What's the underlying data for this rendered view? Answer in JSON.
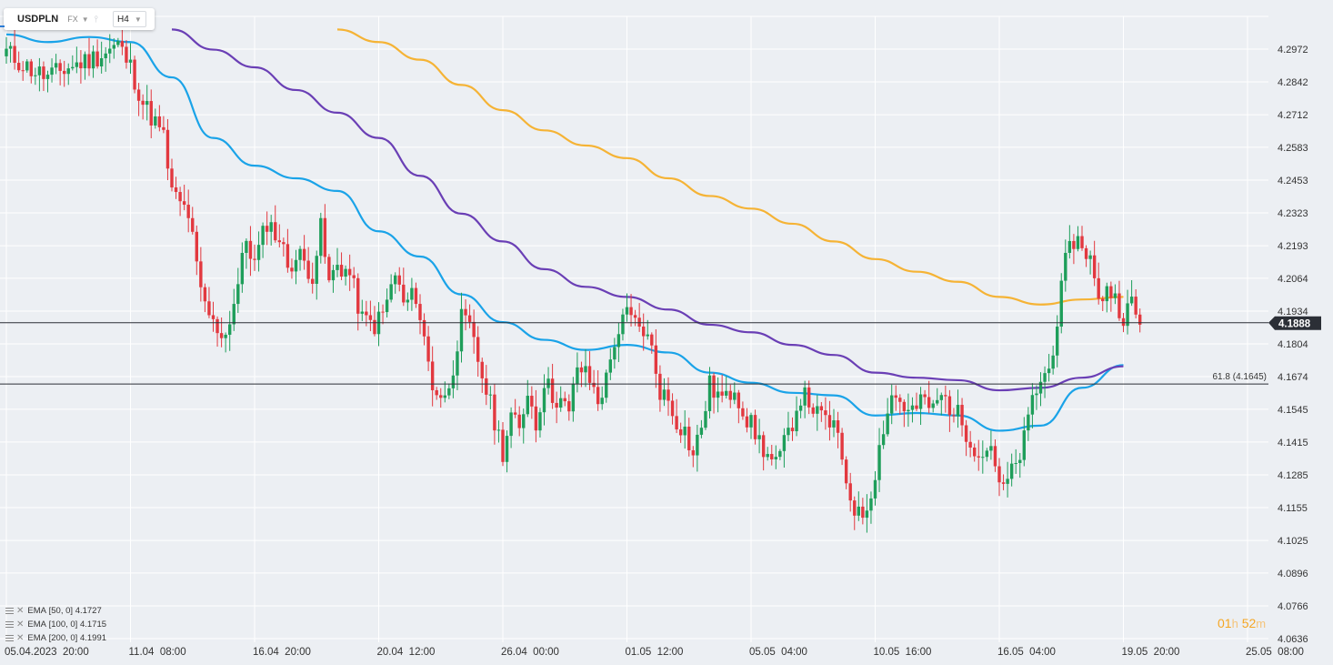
{
  "toolbar": {
    "symbol": "USDPLN",
    "market": "FX",
    "timeframe": "H4"
  },
  "chart_data": {
    "type": "candlestick",
    "symbol": "USDPLN",
    "timeframe": "H4",
    "ylim": [
      4.0636,
      4.3045
    ],
    "y_ticks": [
      "4.2972",
      "4.2842",
      "4.2712",
      "4.2583",
      "4.2453",
      "4.2323",
      "4.2193",
      "4.2064",
      "4.1934",
      "4.1804",
      "4.1674",
      "4.1545",
      "4.1415",
      "4.1285",
      "4.1155",
      "4.1025",
      "4.0896",
      "4.0766",
      "4.0636"
    ],
    "x_ticks": [
      {
        "label": "05.04.2023  20:00",
        "bar": 0
      },
      {
        "label": "11.04  08:00",
        "bar": 30
      },
      {
        "label": "16.04  20:00",
        "bar": 60
      },
      {
        "label": "20.04  12:00",
        "bar": 90
      },
      {
        "label": "26.04  00:00",
        "bar": 120
      },
      {
        "label": "01.05  12:00",
        "bar": 150
      },
      {
        "label": "05.05  04:00",
        "bar": 180
      },
      {
        "label": "10.05  16:00",
        "bar": 210
      },
      {
        "label": "16.05  04:00",
        "bar": 240
      },
      {
        "label": "19.05  20:00",
        "bar": 270
      },
      {
        "label": "25.05  08:00",
        "bar": 300
      }
    ],
    "last_price": "4.1888",
    "horizontal_lines": [
      {
        "value": 4.1888,
        "label": "",
        "color": "#2b2f36"
      },
      {
        "value": 4.1645,
        "label": "61.8 (4.1645)",
        "color": "#2b2f36"
      }
    ],
    "colors": {
      "up": "#1e9e5a",
      "down": "#e2383f",
      "ema50": "#1aa3e8",
      "ema100": "#6a3fb5",
      "ema200": "#f5b335",
      "grid": "#ffffff",
      "plot_bg": "#eceff3"
    },
    "indicators": [
      {
        "name": "EMA",
        "params": "[50,  0]",
        "value": "4.1727",
        "color": "#1aa3e8"
      },
      {
        "name": "EMA",
        "params": "[100,  0]",
        "value": "4.1715",
        "color": "#6a3fb5"
      },
      {
        "name": "EMA",
        "params": "[200,  0]",
        "value": "4.1991",
        "color": "#f5b335"
      }
    ],
    "ema_series": [
      {
        "key": "ema50",
        "points": [
          [
            0,
            4.303
          ],
          [
            10,
            4.3
          ],
          [
            20,
            4.302
          ],
          [
            30,
            4.3
          ],
          [
            40,
            4.286
          ],
          [
            50,
            4.262
          ],
          [
            60,
            4.251
          ],
          [
            70,
            4.246
          ],
          [
            80,
            4.241
          ],
          [
            90,
            4.225
          ],
          [
            100,
            4.215
          ],
          [
            110,
            4.2
          ],
          [
            120,
            4.189
          ],
          [
            130,
            4.182
          ],
          [
            140,
            4.178
          ],
          [
            150,
            4.18
          ],
          [
            160,
            4.177
          ],
          [
            170,
            4.169
          ],
          [
            180,
            4.165
          ],
          [
            190,
            4.161
          ],
          [
            200,
            4.16
          ],
          [
            210,
            4.152
          ],
          [
            220,
            4.153
          ],
          [
            230,
            4.152
          ],
          [
            240,
            4.146
          ],
          [
            250,
            4.148
          ],
          [
            260,
            4.163
          ],
          [
            270,
            4.172
          ]
        ]
      },
      {
        "key": "ema100",
        "points": [
          [
            40,
            4.305
          ],
          [
            50,
            4.297
          ],
          [
            60,
            4.29
          ],
          [
            70,
            4.281
          ],
          [
            80,
            4.272
          ],
          [
            90,
            4.262
          ],
          [
            100,
            4.247
          ],
          [
            110,
            4.232
          ],
          [
            120,
            4.221
          ],
          [
            130,
            4.21
          ],
          [
            140,
            4.203
          ],
          [
            150,
            4.199
          ],
          [
            160,
            4.194
          ],
          [
            170,
            4.188
          ],
          [
            180,
            4.185
          ],
          [
            190,
            4.18
          ],
          [
            200,
            4.176
          ],
          [
            210,
            4.169
          ],
          [
            220,
            4.167
          ],
          [
            230,
            4.166
          ],
          [
            240,
            4.162
          ],
          [
            250,
            4.163
          ],
          [
            260,
            4.167
          ],
          [
            270,
            4.1715
          ]
        ]
      },
      {
        "key": "ema200",
        "points": [
          [
            80,
            4.305
          ],
          [
            90,
            4.3
          ],
          [
            100,
            4.293
          ],
          [
            110,
            4.283
          ],
          [
            120,
            4.273
          ],
          [
            130,
            4.265
          ],
          [
            140,
            4.259
          ],
          [
            150,
            4.254
          ],
          [
            160,
            4.246
          ],
          [
            170,
            4.239
          ],
          [
            180,
            4.234
          ],
          [
            190,
            4.228
          ],
          [
            200,
            4.221
          ],
          [
            210,
            4.214
          ],
          [
            220,
            4.209
          ],
          [
            230,
            4.205
          ],
          [
            240,
            4.199
          ],
          [
            250,
            4.196
          ],
          [
            260,
            4.198
          ],
          [
            270,
            4.199
          ]
        ]
      }
    ],
    "candle_anchors": [
      [
        0,
        4.296
      ],
      [
        5,
        4.29
      ],
      [
        10,
        4.286
      ],
      [
        15,
        4.29
      ],
      [
        20,
        4.293
      ],
      [
        24,
        4.296
      ],
      [
        27,
        4.299
      ],
      [
        30,
        4.29
      ],
      [
        33,
        4.276
      ],
      [
        36,
        4.268
      ],
      [
        38,
        4.262
      ],
      [
        40,
        4.24
      ],
      [
        44,
        4.232
      ],
      [
        47,
        4.2
      ],
      [
        50,
        4.188
      ],
      [
        53,
        4.184
      ],
      [
        56,
        4.204
      ],
      [
        58,
        4.222
      ],
      [
        60,
        4.212
      ],
      [
        63,
        4.229
      ],
      [
        66,
        4.222
      ],
      [
        68,
        4.212
      ],
      [
        71,
        4.215
      ],
      [
        74,
        4.208
      ],
      [
        76,
        4.226
      ],
      [
        78,
        4.204
      ],
      [
        80,
        4.212
      ],
      [
        83,
        4.208
      ],
      [
        86,
        4.19
      ],
      [
        89,
        4.188
      ],
      [
        91,
        4.192
      ],
      [
        94,
        4.208
      ],
      [
        96,
        4.196
      ],
      [
        99,
        4.2
      ],
      [
        101,
        4.182
      ],
      [
        103,
        4.164
      ],
      [
        106,
        4.158
      ],
      [
        108,
        4.172
      ],
      [
        110,
        4.19
      ],
      [
        112,
        4.186
      ],
      [
        114,
        4.174
      ],
      [
        116,
        4.162
      ],
      [
        118,
        4.15
      ],
      [
        120,
        4.138
      ],
      [
        122,
        4.152
      ],
      [
        124,
        4.145
      ],
      [
        126,
        4.163
      ],
      [
        128,
        4.148
      ],
      [
        130,
        4.166
      ],
      [
        132,
        4.16
      ],
      [
        134,
        4.158
      ],
      [
        136,
        4.152
      ],
      [
        138,
        4.172
      ],
      [
        141,
        4.166
      ],
      [
        143,
        4.158
      ],
      [
        145,
        4.166
      ],
      [
        147,
        4.182
      ],
      [
        150,
        4.192
      ],
      [
        152,
        4.188
      ],
      [
        154,
        4.186
      ],
      [
        156,
        4.178
      ],
      [
        158,
        4.162
      ],
      [
        160,
        4.158
      ],
      [
        162,
        4.15
      ],
      [
        164,
        4.146
      ],
      [
        166,
        4.136
      ],
      [
        168,
        4.148
      ],
      [
        170,
        4.164
      ],
      [
        172,
        4.16
      ],
      [
        174,
        4.158
      ],
      [
        176,
        4.164
      ],
      [
        178,
        4.154
      ],
      [
        180,
        4.148
      ],
      [
        182,
        4.142
      ],
      [
        184,
        4.136
      ],
      [
        186,
        4.132
      ],
      [
        188,
        4.14
      ],
      [
        190,
        4.15
      ],
      [
        192,
        4.16
      ],
      [
        194,
        4.158
      ],
      [
        196,
        4.152
      ],
      [
        198,
        4.15
      ],
      [
        200,
        4.148
      ],
      [
        202,
        4.134
      ],
      [
        204,
        4.12
      ],
      [
        206,
        4.112
      ],
      [
        208,
        4.116
      ],
      [
        210,
        4.13
      ],
      [
        212,
        4.148
      ],
      [
        214,
        4.16
      ],
      [
        216,
        4.158
      ],
      [
        218,
        4.153
      ],
      [
        220,
        4.155
      ],
      [
        222,
        4.158
      ],
      [
        224,
        4.154
      ],
      [
        226,
        4.16
      ],
      [
        228,
        4.156
      ],
      [
        230,
        4.152
      ],
      [
        232,
        4.146
      ],
      [
        234,
        4.14
      ],
      [
        236,
        4.136
      ],
      [
        238,
        4.142
      ],
      [
        240,
        4.122
      ],
      [
        242,
        4.126
      ],
      [
        244,
        4.132
      ],
      [
        246,
        4.142
      ],
      [
        248,
        4.158
      ],
      [
        250,
        4.166
      ],
      [
        252,
        4.17
      ],
      [
        254,
        4.19
      ],
      [
        256,
        4.212
      ],
      [
        258,
        4.222
      ],
      [
        260,
        4.22
      ],
      [
        262,
        4.214
      ],
      [
        264,
        4.196
      ],
      [
        266,
        4.204
      ],
      [
        268,
        4.198
      ],
      [
        270,
        4.192
      ],
      [
        272,
        4.196
      ],
      [
        274,
        4.188
      ]
    ]
  }
}
